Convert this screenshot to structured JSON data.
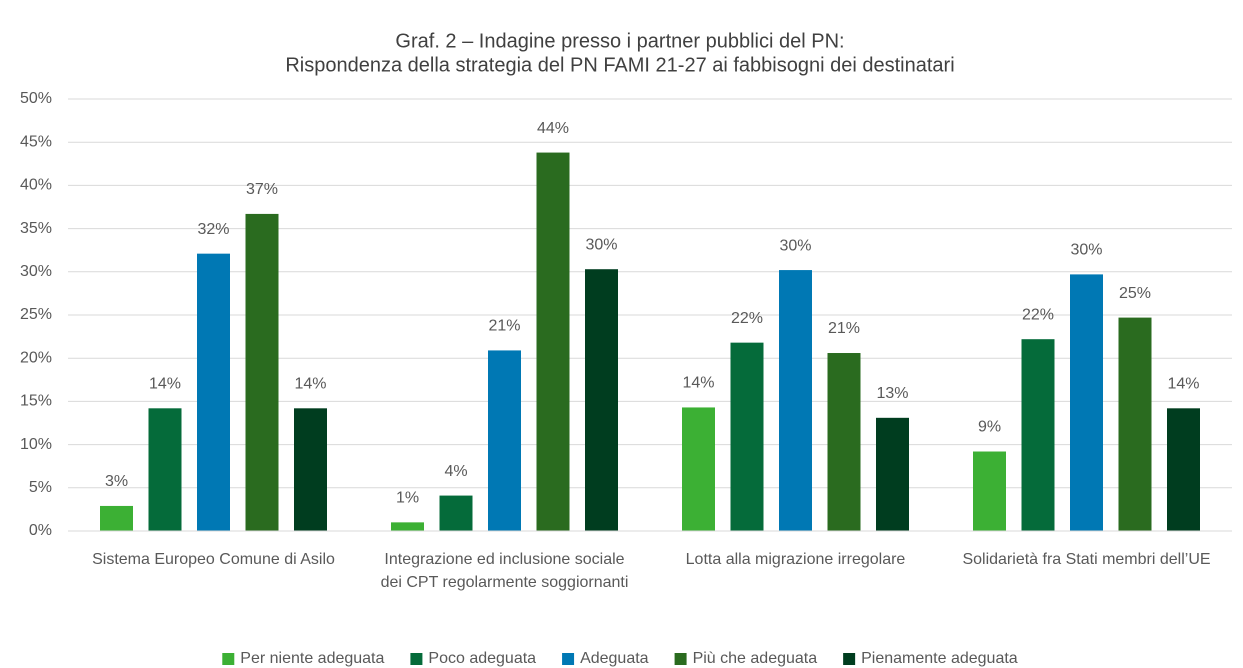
{
  "chart_data": {
    "type": "bar",
    "title": [
      "Graf. 2 – Indagine presso i partner pubblici del PN:",
      "Rispondenza della strategia del PN FAMI 21-27 ai fabbisogni dei destinatari"
    ],
    "categories": [
      "Sistema Europeo Comune di Asilo",
      "Integrazione ed inclusione sociale dei CPT regolarmente soggiornanti",
      "Lotta alla migrazione irregolare",
      "Solidarietà fra Stati membri dell’UE"
    ],
    "series": [
      {
        "name": "Per niente adeguata",
        "color": "#3cb034",
        "values": [
          2.9,
          1.0,
          14.3,
          9.2
        ],
        "value_labels": [
          "3%",
          "1%",
          "14%",
          "9%"
        ]
      },
      {
        "name": "Poco adeguata",
        "color": "#056b3a",
        "values": [
          14.2,
          4.1,
          21.8,
          22.2
        ],
        "value_labels": [
          "14%",
          "4%",
          "22%",
          "22%"
        ]
      },
      {
        "name": "Adeguata",
        "color": "#0078b4",
        "values": [
          32.1,
          20.9,
          30.2,
          29.7
        ],
        "value_labels": [
          "32%",
          "21%",
          "30%",
          "30%"
        ]
      },
      {
        "name": "Più che adeguata",
        "color": "#2a6b1f",
        "values": [
          36.7,
          43.8,
          20.6,
          24.7
        ],
        "value_labels": [
          "37%",
          "44%",
          "21%",
          "25%"
        ]
      },
      {
        "name": "Pienamente adeguata",
        "color": "#003d1f",
        "values": [
          14.2,
          30.3,
          13.1,
          14.2
        ],
        "value_labels": [
          "14%",
          "30%",
          "13%",
          "14%"
        ]
      }
    ],
    "ylim": [
      0,
      50
    ],
    "yticks": [
      {
        "value": 0,
        "label": "0%"
      },
      {
        "value": 5,
        "label": "5%"
      },
      {
        "value": 10,
        "label": "10%"
      },
      {
        "value": 15,
        "label": "15%"
      },
      {
        "value": 20,
        "label": "20%"
      },
      {
        "value": 25,
        "label": "25%"
      },
      {
        "value": 30,
        "label": "30%"
      },
      {
        "value": 35,
        "label": "35%"
      },
      {
        "value": 40,
        "label": "40%"
      },
      {
        "value": 45,
        "label": "45%"
      },
      {
        "value": 50,
        "label": "50%"
      }
    ],
    "grid": true,
    "legend": "bottom"
  }
}
